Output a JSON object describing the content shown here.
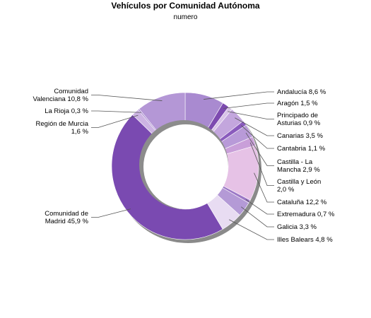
{
  "chart_data": {
    "type": "pie",
    "style": "donut",
    "title": "Vehículos por Comunidad Autónoma",
    "subtitle": "numero",
    "slices": [
      {
        "label": [
          "Andalucía 8,6 %"
        ],
        "value": 8.6,
        "color": "#a98ad0"
      },
      {
        "label": [
          "Aragón 1,5 %"
        ],
        "value": 1.5,
        "color": "#7d4ab0"
      },
      {
        "label": [
          "Principado de",
          "Asturias 0,9 %"
        ],
        "value": 0.9,
        "color": "#d8c3e7"
      },
      {
        "label": [
          "Canarias 3,5 %"
        ],
        "value": 3.5,
        "color": "#c3a6dd"
      },
      {
        "label": [
          "Cantabria 1,1 %"
        ],
        "value": 1.1,
        "color": "#8a5bbd"
      },
      {
        "label": [
          "Castilla - La",
          "Mancha 2,9 %"
        ],
        "value": 2.9,
        "color": "#b89ad8"
      },
      {
        "label": [
          "Castilla y León",
          "2,0 %"
        ],
        "value": 2.0,
        "color": "#c99fd9"
      },
      {
        "label": [
          "Cataluña 12,2 %"
        ],
        "value": 12.2,
        "color": "#e6c2e6"
      },
      {
        "label": [
          "Extremadura 0,7 %"
        ],
        "value": 0.7,
        "color": "#9c78c6"
      },
      {
        "label": [
          "Galicia 3,3 %"
        ],
        "value": 3.3,
        "color": "#b49ad6"
      },
      {
        "label": [
          "Illes Balears 4,8 %"
        ],
        "value": 4.8,
        "color": "#e8dcf2"
      },
      {
        "label": [
          "Comunidad de",
          "Madrid 45,9 %"
        ],
        "value": 45.9,
        "color": "#7a4ab1"
      },
      {
        "label": [
          "Región de Murcia",
          "1,6 %"
        ],
        "value": 1.6,
        "color": "#cdb4e3"
      },
      {
        "label": [
          "La Rioja 0,3 %"
        ],
        "value": 0.3,
        "color": "#a07fcb"
      },
      {
        "label": [
          "Comunidad",
          "Valenciana 10,8 %"
        ],
        "value": 10.8,
        "color": "#b497d6"
      }
    ]
  }
}
